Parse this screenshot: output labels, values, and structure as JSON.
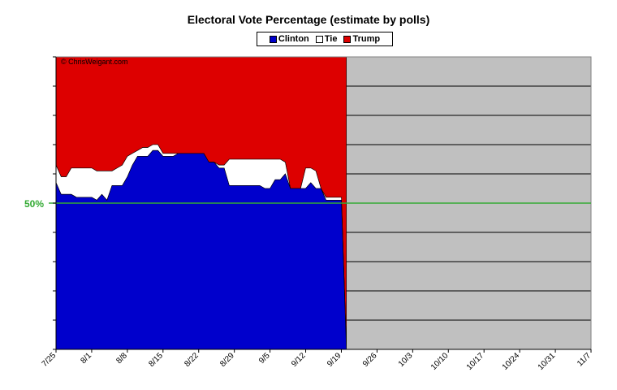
{
  "chart_data": {
    "type": "area",
    "title": "Electoral Vote Percentage (estimate by polls)",
    "copyright": "© ChrisWeigant.com",
    "reference_line": {
      "value": 50,
      "label": "50%",
      "color": "#33aa33"
    },
    "ylim": [
      0,
      100
    ],
    "legend": {
      "position": "top-center",
      "entries": [
        {
          "name": "Clinton",
          "color": "#0000cc"
        },
        {
          "name": "Tie",
          "color": "#ffffff"
        },
        {
          "name": "Trump",
          "color": "#dd0000"
        }
      ]
    },
    "x_ticks": [
      "7/25",
      "8/1",
      "8/8",
      "8/15",
      "8/22",
      "8/29",
      "9/5",
      "9/12",
      "9/19",
      "9/26",
      "10/3",
      "10/10",
      "10/17",
      "10/24",
      "10/31",
      "11/7"
    ],
    "x_range": [
      "7/25",
      "11/7"
    ],
    "x": [
      "7/25",
      "7/26",
      "7/27",
      "7/28",
      "7/29",
      "7/30",
      "7/31",
      "8/1",
      "8/2",
      "8/3",
      "8/4",
      "8/5",
      "8/6",
      "8/7",
      "8/8",
      "8/9",
      "8/10",
      "8/11",
      "8/12",
      "8/13",
      "8/14",
      "8/15",
      "8/16",
      "8/17",
      "8/18",
      "8/19",
      "8/20",
      "8/21",
      "8/22",
      "8/23",
      "8/24",
      "8/25",
      "8/26",
      "8/27",
      "8/28",
      "8/29",
      "8/30",
      "8/31",
      "9/1",
      "9/2",
      "9/3",
      "9/4",
      "9/5",
      "9/6",
      "9/7",
      "9/8",
      "9/9",
      "9/10",
      "9/11",
      "9/12",
      "9/13",
      "9/14",
      "9/15",
      "9/16",
      "9/17",
      "9/18",
      "9/19",
      "9/20"
    ],
    "series": [
      {
        "name": "Clinton",
        "color": "#0000cc",
        "values": [
          57,
          53,
          53,
          53,
          52,
          52,
          52,
          52,
          51,
          53,
          51,
          56,
          56,
          56,
          59,
          63,
          66,
          66,
          66,
          68,
          68,
          66,
          66,
          66,
          67,
          67,
          67,
          67,
          67,
          67,
          64,
          64,
          62,
          62,
          56,
          56,
          56,
          56,
          56,
          56,
          56,
          55,
          55,
          58,
          58,
          60,
          55,
          55,
          55,
          55,
          57,
          55,
          55,
          51,
          51,
          51,
          51,
          0
        ]
      },
      {
        "name": "Tie",
        "color": "#ffffff",
        "values": [
          6,
          6,
          6,
          9,
          10,
          10,
          10,
          10,
          10,
          8,
          10,
          5,
          6,
          7,
          7,
          4,
          2,
          3,
          3,
          2,
          2,
          1,
          1,
          1,
          0,
          0,
          0,
          0,
          0,
          0,
          0,
          0,
          1,
          1,
          9,
          9,
          9,
          9,
          9,
          9,
          9,
          10,
          10,
          7,
          7,
          4,
          0,
          0,
          0,
          7,
          5,
          6,
          0,
          1,
          1,
          1,
          1,
          0
        ]
      },
      {
        "name": "Trump",
        "color": "#dd0000",
        "values": [
          37,
          41,
          41,
          38,
          38,
          38,
          38,
          38,
          39,
          39,
          39,
          39,
          38,
          37,
          34,
          33,
          32,
          31,
          31,
          30,
          30,
          33,
          33,
          33,
          33,
          33,
          33,
          33,
          33,
          33,
          36,
          36,
          37,
          37,
          35,
          35,
          35,
          35,
          35,
          35,
          35,
          35,
          35,
          35,
          35,
          36,
          45,
          45,
          45,
          38,
          38,
          39,
          45,
          48,
          48,
          48,
          48,
          100
        ]
      }
    ]
  }
}
